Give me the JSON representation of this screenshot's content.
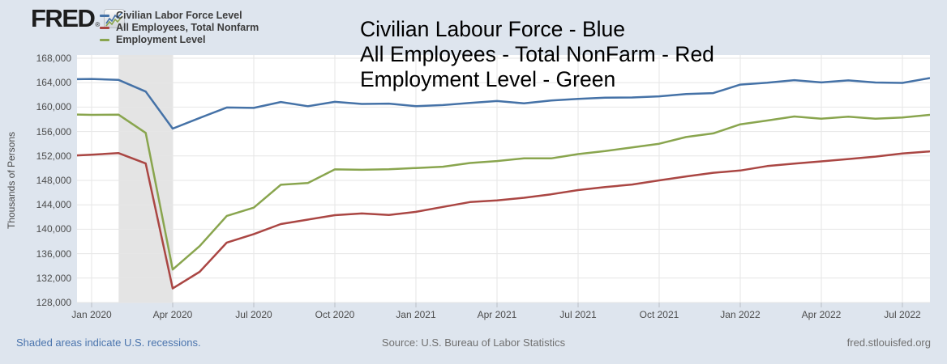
{
  "page": {
    "brand": "FRED",
    "brand_registered": "®",
    "footer_left": "Shaded areas indicate U.S. recessions.",
    "footer_source": "Source: U.S. Bureau of Labor Statistics",
    "footer_site": "fred.stlouisfed.org"
  },
  "annotation": {
    "lines": [
      "Civilian Labour Force - Blue",
      "All Employees - Total NonFarm - Red",
      "Employment Level - Green"
    ]
  },
  "legend": {
    "items": [
      {
        "label": "Civilian Labor Force Level",
        "color": "#4572a7"
      },
      {
        "label": "All Employees, Total Nonfarm",
        "color": "#aa4643"
      },
      {
        "label": "Employment Level",
        "color": "#89a54e"
      }
    ]
  },
  "chart_data": {
    "type": "line",
    "ylabel": "Thousands of Persons",
    "ylim": [
      128000,
      168000
    ],
    "ytick_step": 4000,
    "ytick_labels": [
      "168,000",
      "164,000",
      "160,000",
      "156,000",
      "152,000",
      "148,000",
      "144,000",
      "140,000",
      "136,000",
      "132,000",
      "128,000"
    ],
    "grid": true,
    "legend_position": "top-left",
    "x": [
      "2019-12",
      "2020-01",
      "2020-02",
      "2020-03",
      "2020-04",
      "2020-05",
      "2020-06",
      "2020-07",
      "2020-08",
      "2020-09",
      "2020-10",
      "2020-11",
      "2020-12",
      "2021-01",
      "2021-02",
      "2021-03",
      "2021-04",
      "2021-05",
      "2021-06",
      "2021-07",
      "2021-08",
      "2021-09",
      "2021-10",
      "2021-11",
      "2021-12",
      "2022-01",
      "2022-02",
      "2022-03",
      "2022-04",
      "2022-05",
      "2022-06",
      "2022-07",
      "2022-08"
    ],
    "xtick_indices": [
      1,
      4,
      7,
      10,
      13,
      16,
      19,
      22,
      25,
      28,
      31
    ],
    "xtick_labels": [
      "Jan 2020",
      "Apr 2020",
      "Jul 2020",
      "Oct 2020",
      "Jan 2021",
      "Apr 2021",
      "Jul 2021",
      "Oct 2021",
      "Jan 2022",
      "Apr 2022",
      "Jul 2022"
    ],
    "recession_band": {
      "start_x": "2020-02",
      "end_x": "2020-04",
      "color": "#e4e4e4"
    },
    "series": [
      {
        "name": "Civilian Labor Force Level",
        "color": "#4572a7",
        "values": [
          164556,
          164606,
          164448,
          162537,
          156471,
          158227,
          159932,
          159870,
          160838,
          160143,
          160867,
          160518,
          160567,
          160161,
          160332,
          160677,
          160998,
          160614,
          161086,
          161347,
          161537,
          161570,
          161762,
          162138,
          162294,
          163688,
          163991,
          164409,
          164046,
          164376,
          164023,
          163960,
          164746
        ]
      },
      {
        "name": "All Employees, Total Nonfarm",
        "color": "#aa4643",
        "values": [
          151998,
          152212,
          152469,
          150768,
          130303,
          133028,
          137809,
          139206,
          140854,
          141578,
          142299,
          142577,
          142336,
          142853,
          143652,
          144453,
          144716,
          145157,
          145723,
          146413,
          146902,
          147324,
          148001,
          148648,
          149240,
          149619,
          150343,
          150741,
          151109,
          151495,
          151889,
          152415,
          152744
        ]
      },
      {
        "name": "Employment Level",
        "color": "#89a54e",
        "values": [
          158803,
          158735,
          158759,
          155772,
          133403,
          137242,
          142182,
          143532,
          147288,
          147563,
          149804,
          149732,
          149830,
          150031,
          150239,
          150848,
          151160,
          151620,
          151602,
          152300,
          152800,
          153400,
          154000,
          155100,
          155700,
          157174,
          157797,
          158458,
          158105,
          158426,
          158111,
          158290,
          158732
        ]
      }
    ]
  }
}
